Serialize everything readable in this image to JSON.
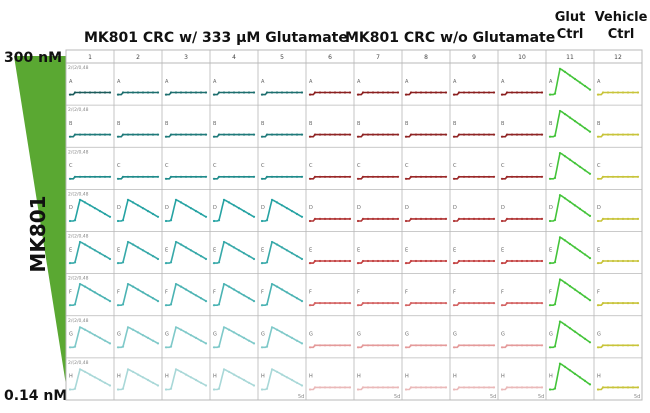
{
  "headers": {
    "group1": "MK801 CRC w/ 333 µM Glutamate",
    "group2": "MK801 CRC w/o Glutamate",
    "glut_ctrl": [
      "Glut",
      "Ctrl"
    ],
    "vehicle_ctrl": [
      "Vehicle",
      "Ctrl"
    ],
    "conc_top": "300 nM",
    "conc_bottom": "0.14 nM",
    "axis_label": "MK801"
  },
  "colors": {
    "triangle": "#5aa832",
    "grid": "#b8b8b8",
    "teal": "#1a9b9b",
    "dark_teal": "#1a5b5b",
    "red": "#b03030",
    "glut_green": "#44c43a",
    "vehicle_yellow": "#c8c43a"
  },
  "chart_data": {
    "type": "line",
    "columns": [
      "1",
      "2",
      "3",
      "4",
      "5",
      "6",
      "7",
      "8",
      "9",
      "10",
      "11",
      "12"
    ],
    "rows": [
      "A",
      "B",
      "C",
      "D",
      "E",
      "F",
      "G",
      "H"
    ],
    "y_tick": "2/(2/0,48",
    "x_tick": "5d",
    "series_pattern": {
      "cols_1_5": {
        "A": "flat",
        "B": "flat",
        "C": "flat",
        "D": "peak",
        "E": "peak",
        "F": "peak",
        "G": "peak",
        "H": "peak"
      },
      "cols_6_10": {
        "all": "flat"
      },
      "col_11": {
        "all": "peak"
      },
      "col_12": {
        "all": "flat"
      }
    }
  }
}
